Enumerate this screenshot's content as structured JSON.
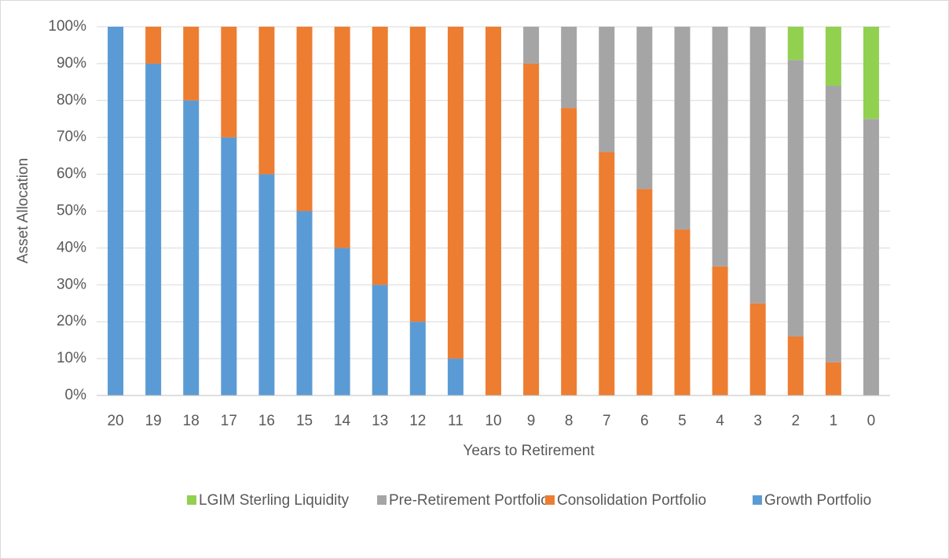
{
  "chart_data": {
    "type": "stacked_bar",
    "x_label": "Years to Retirement",
    "y_label": "Asset Allocation",
    "categories": [
      "20",
      "19",
      "18",
      "17",
      "16",
      "15",
      "14",
      "13",
      "12",
      "11",
      "10",
      "9",
      "8",
      "7",
      "6",
      "5",
      "4",
      "3",
      "2",
      "1",
      "0"
    ],
    "series": [
      {
        "name": "Growth Portfolio",
        "color": "#5b9bd5",
        "values": [
          100,
          90,
          80,
          70,
          60,
          50,
          40,
          30,
          20,
          10,
          0,
          0,
          0,
          0,
          0,
          0,
          0,
          0,
          0,
          0,
          0
        ]
      },
      {
        "name": "Consolidation Portfolio",
        "color": "#ed7d31",
        "values": [
          0,
          10,
          20,
          30,
          40,
          50,
          60,
          70,
          80,
          90,
          100,
          90,
          78,
          66,
          56,
          45,
          35,
          25,
          16,
          9,
          0
        ]
      },
      {
        "name": "Pre-Retirement Portfolio",
        "color": "#a5a5a5",
        "values": [
          0,
          0,
          0,
          0,
          0,
          0,
          0,
          0,
          0,
          0,
          0,
          10,
          22,
          34,
          44,
          55,
          65,
          75,
          75,
          75,
          75
        ]
      },
      {
        "name": "LGIM Sterling Liquidity",
        "color": "#92d050",
        "values": [
          0,
          0,
          0,
          0,
          0,
          0,
          0,
          0,
          0,
          0,
          0,
          0,
          0,
          0,
          0,
          0,
          0,
          0,
          9,
          16,
          25
        ]
      }
    ],
    "ylim": [
      0,
      100
    ],
    "yticks": [
      {
        "value": 0,
        "label": "0%"
      },
      {
        "value": 10,
        "label": "10%"
      },
      {
        "value": 20,
        "label": "20%"
      },
      {
        "value": 30,
        "label": "30%"
      },
      {
        "value": 40,
        "label": "40%"
      },
      {
        "value": 50,
        "label": "50%"
      },
      {
        "value": 60,
        "label": "60%"
      },
      {
        "value": 70,
        "label": "70%"
      },
      {
        "value": 80,
        "label": "80%"
      },
      {
        "value": 90,
        "label": "90%"
      },
      {
        "value": 100,
        "label": "100%"
      }
    ],
    "grid": true,
    "legend": "bottom"
  }
}
